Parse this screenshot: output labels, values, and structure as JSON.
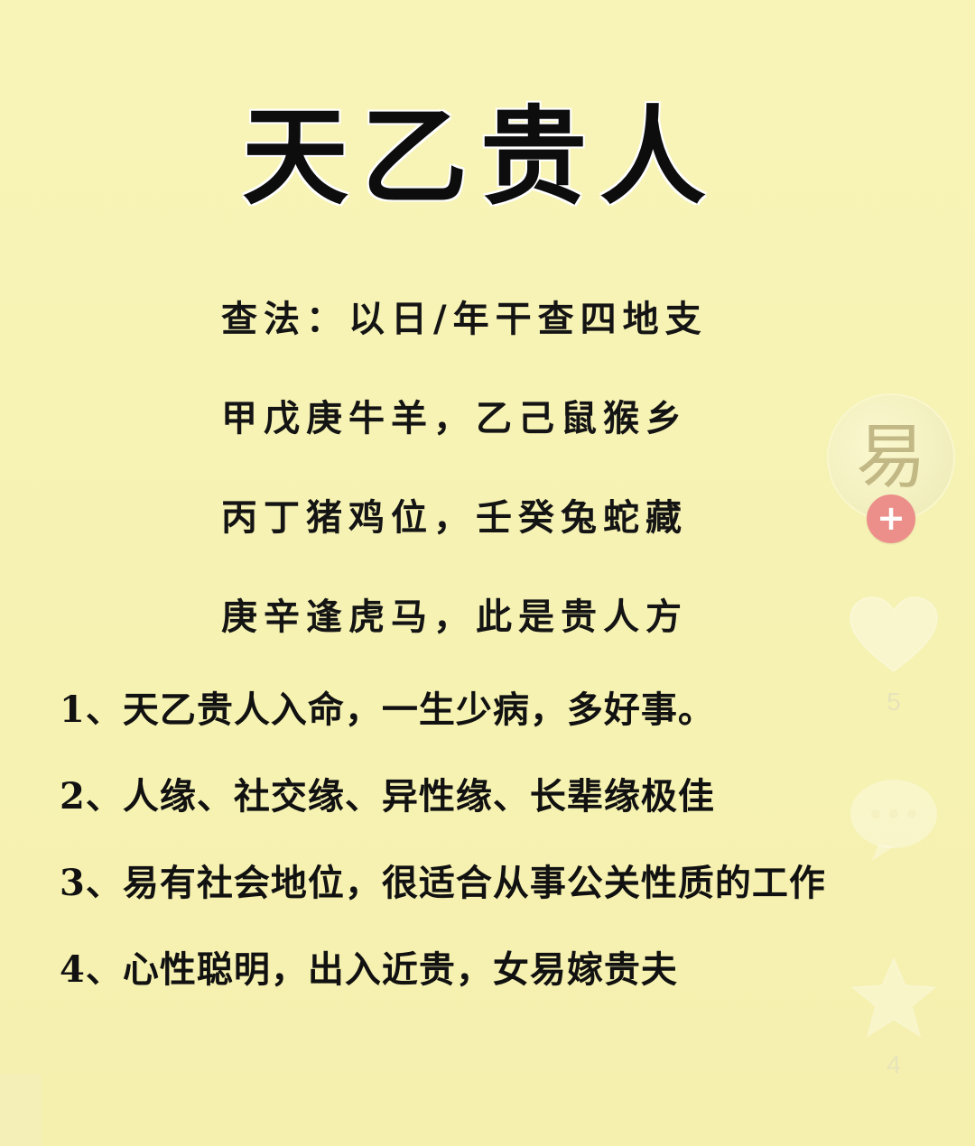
{
  "title": "天乙贵人",
  "rules": [
    "查法：以日/年干查四地支",
    "甲戊庚牛羊，乙己鼠猴乡",
    "丙丁猪鸡位，壬癸兔蛇藏",
    "庚辛逢虎马，此是贵人方"
  ],
  "list": [
    "1、天乙贵人入命，一生少病，多好事。",
    "2、人缘、社交缘、异性缘、长辈缘极佳",
    "3、易有社会地位，很适合从事公关性质的工作",
    "4、心性聪明，出入近贵，女易嫁贵夫"
  ],
  "side_panel": {
    "avatar_glyph": "易",
    "follow_symbol": "+",
    "like_count": "5",
    "comment_icon": "comment-icon",
    "star_count": "4",
    "like_icon": "heart-icon",
    "favorite_icon": "star-icon"
  },
  "colors": {
    "background": "#f7f3b4",
    "text": "#121212",
    "follow_button": "#ec8f8a",
    "icon_overlay": "#ffffff"
  }
}
